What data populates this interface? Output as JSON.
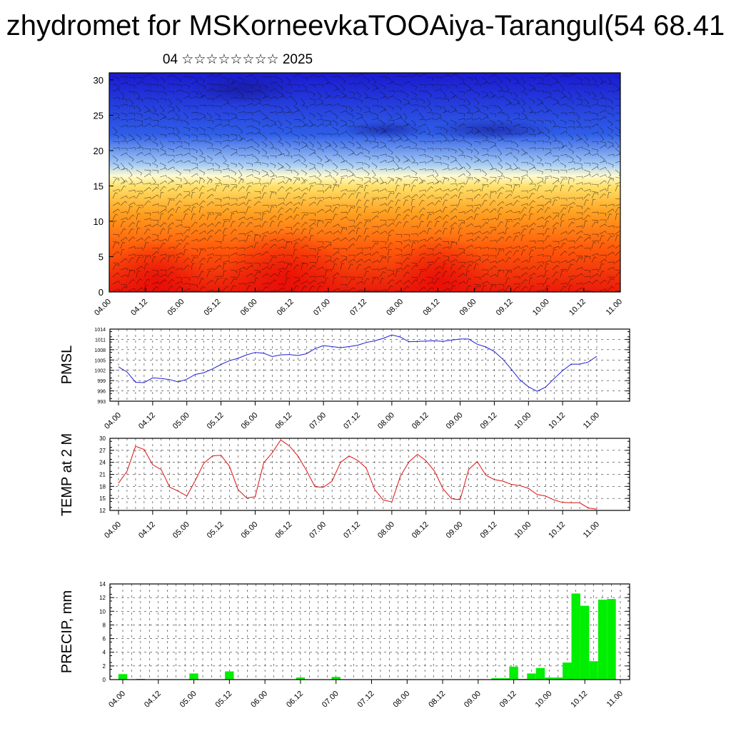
{
  "title": "zhydromet for MSKorneevkaTOOAiya-Tarangul(54 68.41",
  "subtitle": "04 ☆☆☆☆☆☆☆☆ 2025",
  "colors": {
    "pmsl_line": "#1f1fd8",
    "temp_line": "#e01010",
    "precip_bar": "#00ee00"
  },
  "time_ticks": [
    "04.00",
    "04.12",
    "05.00",
    "05.12",
    "06.00",
    "06.12",
    "07.00",
    "07.12",
    "08.00",
    "08.12",
    "09.00",
    "09.12",
    "10.00",
    "10.12",
    "11.00"
  ],
  "chart_data": [
    {
      "type": "heatmap",
      "y_ticks": [
        0,
        5,
        10,
        15,
        20,
        25,
        30
      ],
      "ylim": [
        0,
        31
      ],
      "x_range_hours": [
        0,
        84
      ],
      "colormap": "blue (top) to red (bottom)",
      "overlay": "wind barbs"
    },
    {
      "type": "line",
      "ylabel": "PMSL",
      "ylim": [
        993,
        1014
      ],
      "y_ticks": [
        993,
        996,
        999,
        1002,
        1005,
        1008,
        1011,
        1014
      ],
      "x_hours": [
        0,
        3,
        6,
        9,
        12,
        15,
        18,
        21,
        24,
        27,
        30,
        33,
        36,
        39,
        42,
        45,
        48,
        51,
        54,
        57,
        60,
        63,
        66,
        69,
        72,
        75,
        78,
        81,
        84,
        87,
        90,
        93,
        96,
        99,
        102,
        105,
        108,
        111,
        114,
        117,
        120,
        123,
        126,
        129,
        132,
        135,
        138,
        141,
        144,
        147,
        150,
        153,
        156,
        159,
        162,
        165,
        168
      ],
      "series": [
        {
          "values": [
            1003,
            1001.5,
            998.5,
            998.4,
            999.8,
            999.6,
            999.3,
            998.6,
            999.4,
            1000.8,
            1001.3,
            1002.4,
            1003.7,
            1004.8,
            1005.5,
            1006.5,
            1007.2,
            1007,
            1006,
            1006.5,
            1006.6,
            1006.3,
            1006.8,
            1008.3,
            1009.2,
            1008.9,
            1008.6,
            1008.9,
            1009.3,
            1010.1,
            1010.6,
            1011.3,
            1012.3,
            1011.7,
            1010.3,
            1010.4,
            1010.5,
            1010.6,
            1010.4,
            1010.8,
            1011.1,
            1011.1,
            1009.6,
            1008.8,
            1007.5,
            1005.2,
            1002.3,
            999.2,
            997.2,
            995.9,
            997.1,
            999.6,
            1001.9,
            1003.8,
            1003.8,
            1004.4,
            1006.1
          ]
        }
      ]
    },
    {
      "type": "line",
      "ylabel": "TEMP at 2 M",
      "ylim": [
        12,
        30
      ],
      "y_ticks": [
        12,
        15,
        18,
        21,
        24,
        27,
        30
      ],
      "x_hours": [
        0,
        3,
        6,
        9,
        12,
        15,
        18,
        21,
        24,
        27,
        30,
        33,
        36,
        39,
        42,
        45,
        48,
        51,
        54,
        57,
        60,
        63,
        66,
        69,
        72,
        75,
        78,
        81,
        84,
        87,
        90,
        93,
        96,
        99,
        102,
        105,
        108,
        111,
        114,
        117,
        120,
        123,
        126,
        129,
        132,
        135,
        138,
        141,
        144,
        147,
        150,
        153,
        156,
        159,
        162,
        165,
        168
      ],
      "series": [
        {
          "values": [
            18.8,
            21.8,
            28,
            27.2,
            23.4,
            22.2,
            17.8,
            16.8,
            15.6,
            19.5,
            23.8,
            25.6,
            25.8,
            23,
            17.2,
            15.1,
            15.4,
            23.9,
            26.4,
            29.6,
            28.1,
            25.6,
            22,
            17.9,
            17.8,
            19.3,
            24,
            25.6,
            24.5,
            22.6,
            17.2,
            14.6,
            14.1,
            20.5,
            24.1,
            26,
            24.4,
            21.8,
            17.4,
            14.9,
            14.7,
            22.2,
            24.2,
            20.8,
            19.7,
            19.3,
            18.5,
            18.2,
            17.5,
            16,
            15.6,
            14.6,
            14,
            13.9,
            13.9,
            12.6,
            12.3
          ]
        }
      ]
    },
    {
      "type": "bar",
      "ylabel": "PRECIP, mm",
      "ylim": [
        0,
        14
      ],
      "y_ticks": [
        0,
        2,
        4,
        6,
        8,
        10,
        12,
        14
      ],
      "x_hours": [
        0,
        3,
        6,
        9,
        12,
        15,
        18,
        21,
        24,
        27,
        30,
        33,
        36,
        39,
        42,
        45,
        48,
        51,
        54,
        57,
        60,
        63,
        66,
        69,
        72,
        75,
        78,
        81,
        84,
        87,
        90,
        93,
        96,
        99,
        102,
        105,
        108,
        111,
        114,
        117,
        120,
        123,
        126,
        129,
        132,
        135,
        138,
        141,
        144,
        147,
        150,
        153,
        156,
        159,
        162,
        165,
        168
      ],
      "series": [
        {
          "values": [
            0.8,
            0,
            0.1,
            0,
            0.05,
            0,
            0,
            0,
            0.9,
            0,
            0,
            0,
            1.2,
            0,
            0,
            0,
            0,
            0,
            0,
            0,
            0.3,
            0,
            0,
            0,
            0.4,
            0,
            0,
            0,
            0,
            0,
            0,
            0,
            0,
            0,
            0,
            0,
            0,
            0,
            0,
            0,
            0,
            0,
            0.2,
            0.2,
            1.9,
            0.1,
            0.9,
            1.7,
            0.3,
            0.3,
            2.5,
            12.6,
            10.8,
            2.7,
            11.7,
            11.8,
            0
          ]
        }
      ]
    }
  ]
}
